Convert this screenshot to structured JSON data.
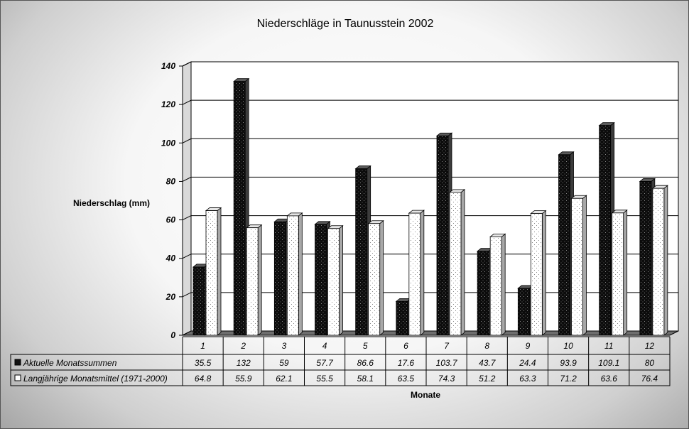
{
  "chart_data": {
    "type": "bar",
    "title": "Niederschläge in Taunusstein 2002",
    "ylabel": "Niederschlag (mm)",
    "xlabel": "Monate",
    "ylim": [
      0,
      140
    ],
    "yticks": [
      0,
      20,
      40,
      60,
      80,
      100,
      120,
      140
    ],
    "grid": true,
    "categories": [
      "1",
      "2",
      "3",
      "4",
      "5",
      "6",
      "7",
      "8",
      "9",
      "10",
      "11",
      "12"
    ],
    "series": [
      {
        "name": "Aktuelle Monatssummen",
        "color": "#111111",
        "labels": [
          "35.5",
          "132",
          "59",
          "57.7",
          "86.6",
          "17.6",
          "103.7",
          "43.7",
          "24.4",
          "93.9",
          "109.1",
          "80"
        ],
        "values": [
          35.5,
          132,
          59,
          57.7,
          86.6,
          17.6,
          103.7,
          43.7,
          24.4,
          93.9,
          109.1,
          80
        ]
      },
      {
        "name": "Langjährige Monatsmittel (1971-2000)",
        "color": "#ffffff",
        "labels": [
          "64.8",
          "55.9",
          "62.1",
          "55.5",
          "58.1",
          "63.5",
          "74.3",
          "51.2",
          "63.3",
          "71.2",
          "63.6",
          "76.4"
        ],
        "values": [
          64.8,
          55.9,
          62.1,
          55.5,
          58.1,
          63.5,
          74.3,
          51.2,
          63.3,
          71.2,
          63.6,
          76.4
        ]
      }
    ]
  }
}
